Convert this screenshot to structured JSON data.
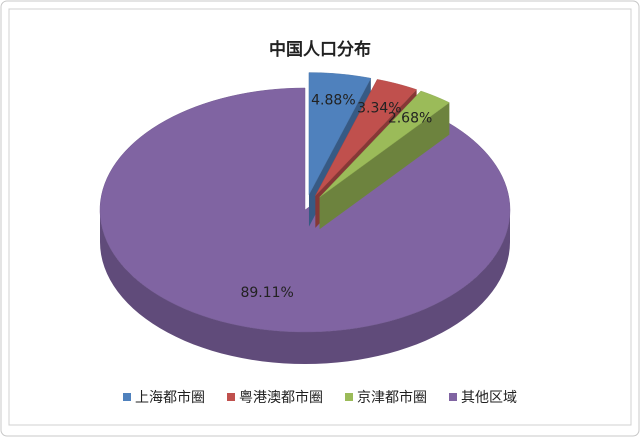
{
  "chart_data": {
    "type": "pie3d",
    "title": "中国人口分布",
    "categories": [
      "上海都市圈",
      "粤港澳都市圈",
      "京津都市圈",
      "其他区域"
    ],
    "values": [
      4.88,
      3.34,
      2.68,
      89.11
    ],
    "value_labels": [
      "4.88%",
      "3.34%",
      "2.68%",
      "89.11%"
    ],
    "colors": [
      "#4f81bd",
      "#c0504d",
      "#9bbb59",
      "#8064a2"
    ],
    "legend": "bottom"
  }
}
